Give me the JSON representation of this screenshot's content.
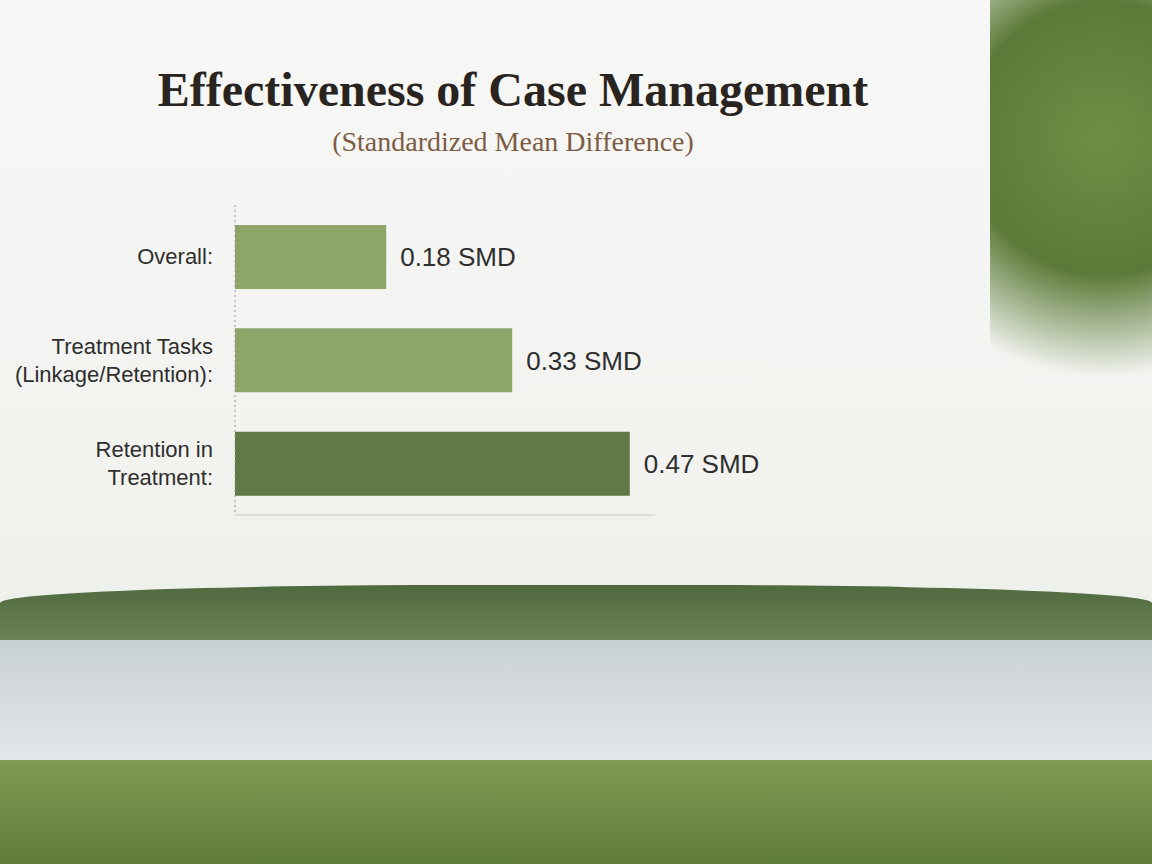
{
  "chart_data": {
    "type": "bar",
    "title": "Effectiveness of Case Management",
    "subtitle": "(Standardized Mean Difference)",
    "orientation": "horizontal",
    "categories": [
      "Overall:",
      "Treatment Tasks (Linkage/Retention):",
      "Retention in Treatment:"
    ],
    "values": [
      0.18,
      0.33,
      0.47
    ],
    "value_labels": [
      "0.18 SMD",
      "0.33 SMD",
      "0.47 SMD"
    ],
    "colors": [
      "#8ea56a",
      "#8ea56a",
      "#5f7a45"
    ],
    "xlim": [
      0,
      0.5
    ],
    "data_labels": true,
    "tick_labels": "y",
    "grid": false
  }
}
